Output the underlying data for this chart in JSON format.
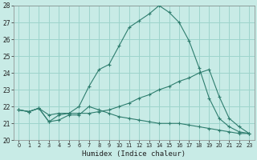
{
  "xlabel": "Humidex (Indice chaleur)",
  "xlim": [
    -0.5,
    23.5
  ],
  "ylim": [
    20,
    28
  ],
  "yticks": [
    20,
    21,
    22,
    23,
    24,
    25,
    26,
    27,
    28
  ],
  "xticks": [
    0,
    1,
    2,
    3,
    4,
    5,
    6,
    7,
    8,
    9,
    10,
    11,
    12,
    13,
    14,
    15,
    16,
    17,
    18,
    19,
    20,
    21,
    22,
    23
  ],
  "bg_color": "#c8ebe6",
  "grid_color": "#9dd4cc",
  "line_color": "#2e7d6e",
  "line1_x": [
    0,
    1,
    2,
    3,
    4,
    5,
    6,
    7,
    8,
    9,
    10,
    11,
    12,
    13,
    14,
    15,
    16,
    17,
    18,
    19,
    20,
    21,
    22,
    23
  ],
  "line1_y": [
    21.8,
    21.7,
    21.9,
    21.1,
    21.5,
    21.6,
    22.0,
    23.2,
    24.2,
    24.5,
    25.6,
    26.7,
    27.1,
    27.5,
    28.0,
    27.6,
    27.0,
    25.9,
    24.3,
    22.5,
    21.3,
    20.8,
    20.5,
    20.4
  ],
  "line2_x": [
    0,
    1,
    2,
    3,
    4,
    5,
    6,
    7,
    8,
    9,
    10,
    11,
    12,
    13,
    14,
    15,
    16,
    17,
    18,
    19,
    20,
    21,
    22,
    23
  ],
  "line2_y": [
    21.8,
    21.7,
    21.9,
    21.5,
    21.6,
    21.6,
    21.6,
    21.6,
    21.7,
    21.8,
    22.0,
    22.2,
    22.5,
    22.7,
    23.0,
    23.2,
    23.5,
    23.7,
    24.0,
    24.2,
    22.6,
    21.3,
    20.8,
    20.4
  ],
  "line3_x": [
    0,
    1,
    2,
    3,
    4,
    5,
    6,
    7,
    8,
    9,
    10,
    11,
    12,
    13,
    14,
    15,
    16,
    17,
    18,
    19,
    20,
    21,
    22,
    23
  ],
  "line3_y": [
    21.8,
    21.7,
    21.9,
    21.1,
    21.2,
    21.5,
    21.5,
    22.0,
    21.8,
    21.6,
    21.4,
    21.3,
    21.2,
    21.1,
    21.0,
    21.0,
    21.0,
    20.9,
    20.8,
    20.7,
    20.6,
    20.5,
    20.4,
    20.4
  ],
  "tick_fontsize": 5.5,
  "xlabel_fontsize": 6.5
}
